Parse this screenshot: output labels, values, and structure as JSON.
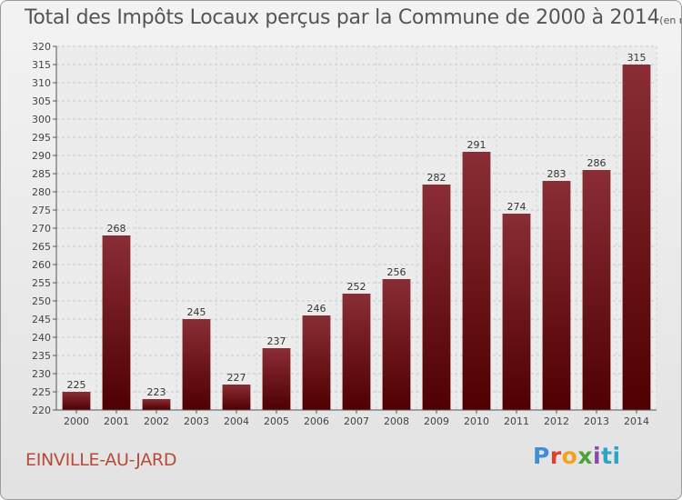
{
  "header": {
    "title": "Total des Impôts Locaux perçus par la Commune de 2000 à 2014",
    "unit": "(en milliers d'€)"
  },
  "footer": {
    "commune": "EINVILLE-AU-JARD",
    "logo_letters": [
      "P",
      "r",
      "o",
      "x",
      "i",
      "ti"
    ]
  },
  "colors": {
    "bar_top": "#8a2d35",
    "bar_bottom": "#4f0000",
    "commune_text": "#b84a3a"
  },
  "chart_data": {
    "type": "bar",
    "categories": [
      "2000",
      "2001",
      "2002",
      "2003",
      "2004",
      "2005",
      "2006",
      "2007",
      "2008",
      "2009",
      "2010",
      "2011",
      "2012",
      "2013",
      "2014"
    ],
    "values": [
      225,
      268,
      223,
      245,
      227,
      237,
      246,
      252,
      256,
      282,
      291,
      274,
      283,
      286,
      315
    ],
    "ylim": [
      220,
      320
    ],
    "ytick_step": 5,
    "grid": true,
    "data_labels": true
  }
}
